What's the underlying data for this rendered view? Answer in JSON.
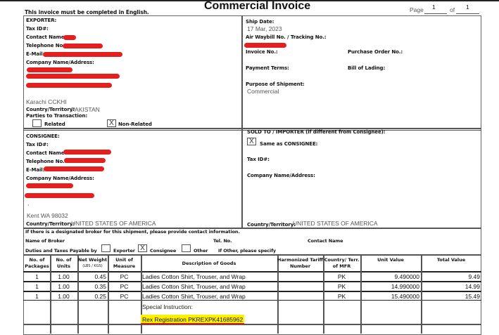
{
  "title": "Commercial Invoice",
  "notice": "This invoice must be completed in English.",
  "page": {
    "label": "Page",
    "current": "1",
    "of_label": "of",
    "total": "1"
  },
  "exporter": {
    "heading": "EXPORTER:",
    "tax_id": "Tax ID#:",
    "contact": "Contact Name:",
    "phone": "Telephone No.:",
    "email": "E-Mail:",
    "company": "Company Name/Address:",
    "city": "Karachi  CCKHI",
    "country_label": "Country/Territory:",
    "country": "PAKISTAN",
    "parties": "Parties to Transaction:",
    "related": "Related",
    "non_related": "Non-Related",
    "non_related_checked": "X"
  },
  "shipment": {
    "ship_date_label": "Ship Date:",
    "ship_date": "17 Mar, 2023",
    "awb_label": "Air Waybill No. / Tracking No.:",
    "invoice_no": "Invoice No.:",
    "po_no": "Purchase Order No.:",
    "payment_terms": "Payment Terms:",
    "bol": "Bill of Lading:",
    "purpose_label": "Purpose of Shipment:",
    "purpose": "Commercial"
  },
  "consignee": {
    "heading": "CONSIGNEE:",
    "tax_id": "Tax ID#:",
    "contact": "Contact Name:",
    "phone": "Telephone No.:",
    "email": "E-Mail:",
    "company": "Company Name/Address:",
    "comma": ",",
    "city": "Kent WA 98032",
    "country_label": "Country/Territory:",
    "country": "UNITED STATES OF AMERICA"
  },
  "sold_to": {
    "heading": "SOLD TO / IMPORTER (if different from Consignee):",
    "same_mark": "X",
    "same_label": "Same as CONSIGNEE:",
    "tax_id": "Tax ID#:",
    "company": "Company Name/Address:",
    "country_label": "Country/Territory:",
    "country": "UNITED STATES OF AMERICA"
  },
  "broker": {
    "note": "If there is a designated broker for this shipment, please provide contact information.",
    "name": "Name of Broker",
    "tel": "Tel. No.",
    "contact": "Contact Name",
    "duties": "Duties and Taxes Payable by",
    "exporter": "Exporter",
    "consignee": "Consignee",
    "consignee_mark": "X",
    "other": "Other",
    "other_specify": "If Other, please specify"
  },
  "table": {
    "headers": [
      "No. of Packages",
      "No. of Units",
      "Net Weight",
      "Unit of Measure",
      "Description of Goods",
      "Harmonized Tariff Number",
      "Country/ Terr. of MFR",
      "Unit Value",
      "Total Value"
    ],
    "weight_sub": "(LBS / KGS)",
    "rows": [
      [
        "1",
        "1.00",
        "0.45",
        "PC",
        "Ladies Cotton Shirt, Trouser, and Wrap",
        "",
        "PK",
        "9.490000",
        "9.49"
      ],
      [
        "1",
        "1.00",
        "0.35",
        "PC",
        "Ladies Cotton Shirt, Trouser, and Wrap",
        "",
        "PK",
        "14.990000",
        "14.99"
      ],
      [
        "1",
        "1.00",
        "0.25",
        "PC",
        "Ladies Cotton Shirt, Trouser, and Wrap",
        "",
        "PK",
        "15.490000",
        "15.49"
      ]
    ],
    "special_label": "Special Instruction:",
    "special_value": "Rex Registration PKREXPK41685962"
  },
  "colors": {
    "redaction": "#e51e1e",
    "highlight": "#fff200"
  }
}
